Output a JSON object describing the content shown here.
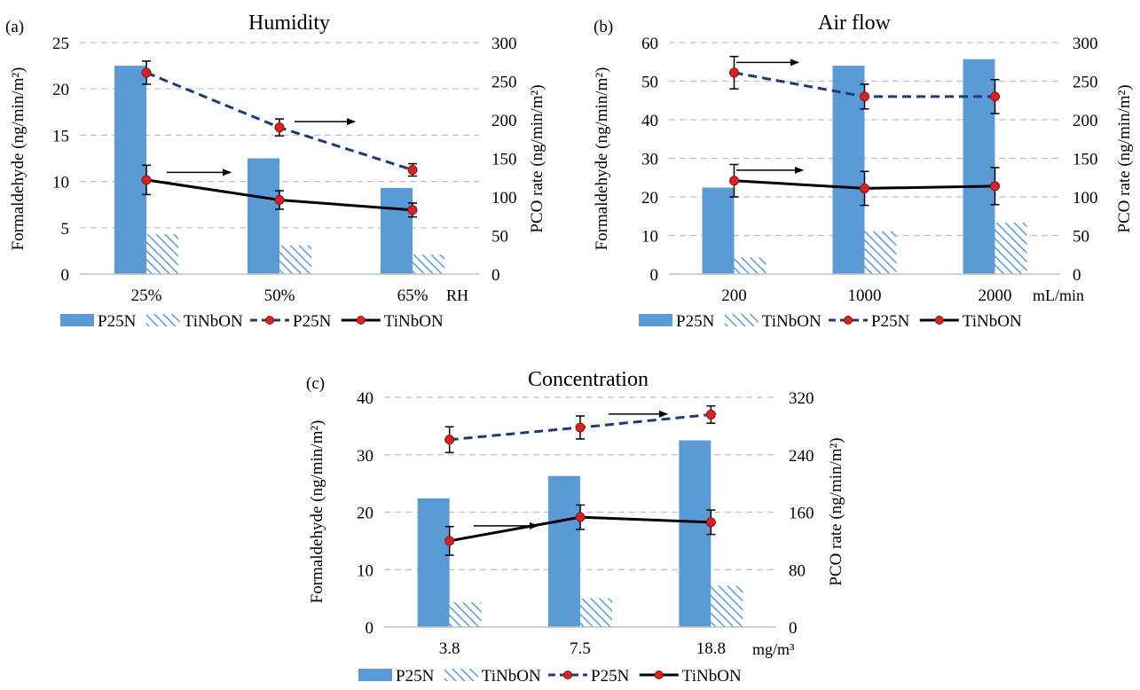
{
  "legend": {
    "bar_p25n": "P25N",
    "bar_tinbon": "TiNbON",
    "line_p25n": "P25N",
    "line_tinbon": "TiNbON"
  },
  "colors": {
    "bar_p25n": "#5b9bd5",
    "bar_tinbon_hatch": "#5b9bd5",
    "line_p25n": "#1f3a78",
    "line_tinbon": "#000000",
    "marker": "#e02020",
    "grid": "#bfbfbf"
  },
  "chart_data": [
    {
      "panel": "(a)",
      "type": "bar",
      "title": "Humidity",
      "xlabel": "RH",
      "ylabel": "Formaldehyde  (ng/min/m²)",
      "y2label": "PCO rate  (ng/min/m²)",
      "categories": [
        "25%",
        "50%",
        "65%"
      ],
      "ylim": [
        0,
        25
      ],
      "yticks": [
        0,
        5,
        10,
        15,
        20,
        25
      ],
      "y2lim": [
        0,
        300
      ],
      "y2ticks": [
        0,
        50,
        100,
        150,
        200,
        250,
        300
      ],
      "grid": true,
      "legend_position": "bottom",
      "bars": [
        {
          "name": "P25N",
          "values": [
            22.5,
            12.5,
            9.3
          ]
        },
        {
          "name": "TiNbON",
          "values": [
            4.3,
            3.1,
            2.1
          ]
        }
      ],
      "lines": [
        {
          "name": "P25N",
          "values": [
            261,
            190,
            135
          ],
          "errors": [
            15,
            11,
            8
          ]
        },
        {
          "name": "TiNbON",
          "values": [
            122,
            96,
            83
          ],
          "errors": [
            19,
            12,
            9
          ]
        }
      ]
    },
    {
      "panel": "(b)",
      "type": "bar",
      "title": "Air flow",
      "xlabel": "mL/min",
      "ylabel": "Formaldehyde  (ng/min/m²)",
      "y2label": "PCO rate  (ng/min/m²)",
      "categories": [
        "200",
        "1000",
        "2000"
      ],
      "ylim": [
        0,
        60
      ],
      "yticks": [
        0,
        10,
        20,
        30,
        40,
        50,
        60
      ],
      "y2lim": [
        0,
        300
      ],
      "y2ticks": [
        0,
        50,
        100,
        150,
        200,
        250,
        300
      ],
      "grid": true,
      "legend_position": "bottom",
      "bars": [
        {
          "name": "P25N",
          "values": [
            22.4,
            54.0,
            55.7
          ]
        },
        {
          "name": "TiNbON",
          "values": [
            4.3,
            11.1,
            13.3
          ]
        }
      ],
      "lines": [
        {
          "name": "P25N",
          "values": [
            261,
            230,
            230
          ],
          "errors": [
            21,
            16,
            22
          ]
        },
        {
          "name": "TiNbON",
          "values": [
            121,
            111,
            114
          ],
          "errors": [
            21,
            22,
            24
          ]
        }
      ]
    },
    {
      "panel": "(c)",
      "type": "bar",
      "title": "Concentration",
      "xlabel": "mg/m³",
      "ylabel": "Formaldehyde  (ng/min/m²)",
      "y2label": "PCO rate  (ng/min/m²)",
      "categories": [
        "3.8",
        "7.5",
        "18.8"
      ],
      "ylim": [
        0,
        40
      ],
      "yticks": [
        0,
        10,
        20,
        30,
        40
      ],
      "y2lim": [
        0,
        320
      ],
      "y2ticks": [
        0,
        80,
        160,
        240,
        320
      ],
      "grid": true,
      "legend_position": "bottom",
      "bars": [
        {
          "name": "P25N",
          "values": [
            22.4,
            26.3,
            32.5
          ]
        },
        {
          "name": "TiNbON",
          "values": [
            4.3,
            5.0,
            7.2
          ]
        }
      ],
      "lines": [
        {
          "name": "P25N",
          "values": [
            261,
            278,
            296
          ],
          "errors": [
            18,
            16,
            12
          ]
        },
        {
          "name": "TiNbON",
          "values": [
            120,
            153,
            146
          ],
          "errors": [
            20,
            17,
            17
          ]
        }
      ]
    }
  ]
}
